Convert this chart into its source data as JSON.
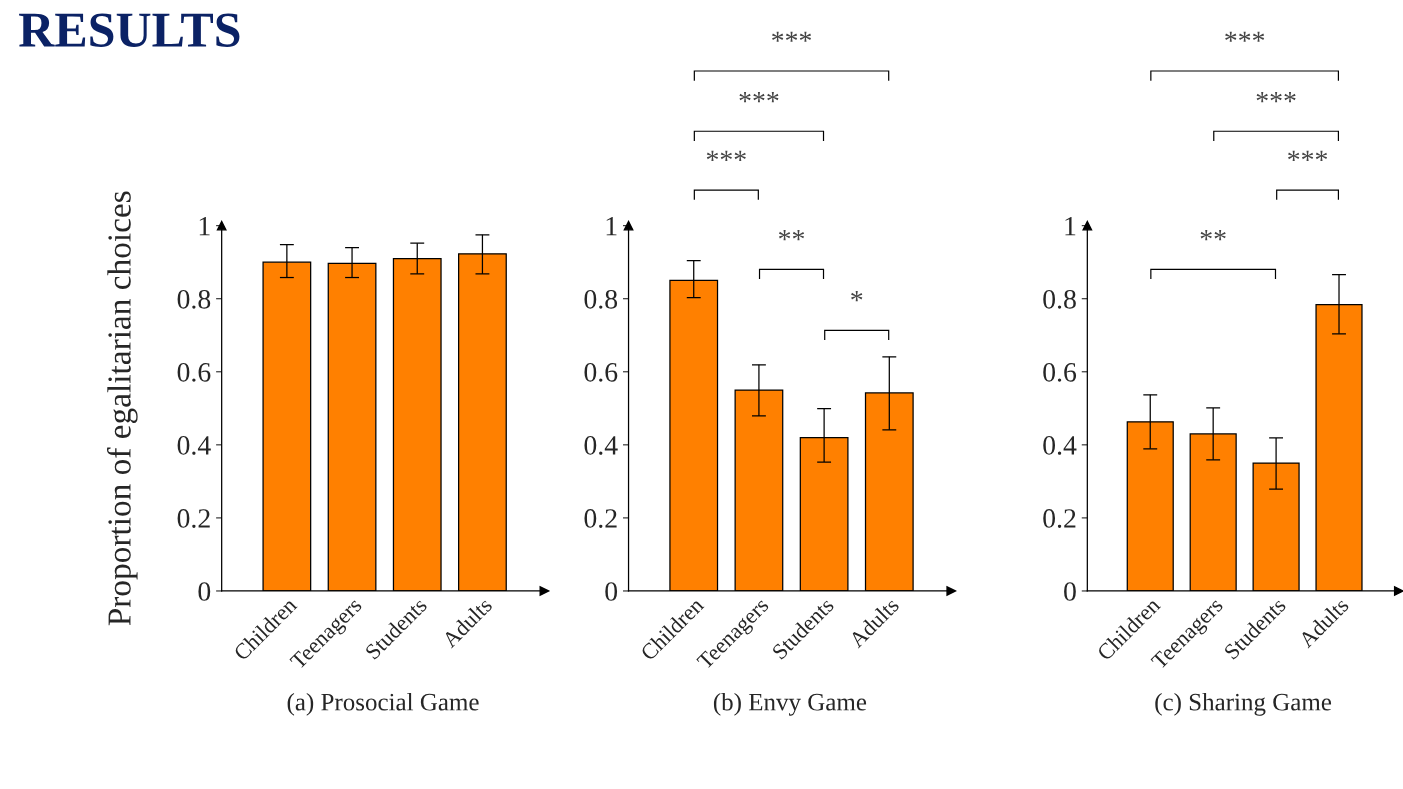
{
  "chart_data": [
    {
      "type": "bar",
      "title": "RESULTS",
      "ylabel": "Proportion of egalitarian choices",
      "xlabel": "(a) Prosocial Game",
      "categories": [
        "Children",
        "Teenagers",
        "Students",
        "Adults"
      ],
      "series": [
        {
          "color": "#ff8000",
          "values": [
            0.9,
            0.897,
            0.91,
            0.923
          ],
          "errors": [
            [
              0.858,
              0.948
            ],
            [
              0.858,
              0.94
            ],
            [
              0.868,
              0.952
            ],
            [
              0.868,
              0.975
            ]
          ]
        }
      ],
      "ylim": [
        0,
        1
      ],
      "yticks": [
        0,
        0.2,
        0.4,
        0.6,
        0.8,
        1
      ],
      "grid": false,
      "legend": false
    },
    {
      "type": "bar",
      "xlabel": "(b) Envy Game",
      "categories": [
        "Children",
        "Teenagers",
        "Students",
        "Adults"
      ],
      "series": [
        {
          "color": "#ff8000",
          "values": [
            0.85,
            0.55,
            0.42,
            0.542
          ],
          "errors": [
            [
              0.803,
              0.904
            ],
            [
              0.479,
              0.619
            ],
            [
              0.353,
              0.499
            ],
            [
              0.441,
              0.641
            ]
          ]
        }
      ],
      "ylim": [
        0,
        1
      ],
      "yticks": [
        0,
        0.2,
        0.4,
        0.6,
        0.8,
        1
      ],
      "grid": false,
      "legend": false,
      "annotations": [
        "***",
        "***",
        "***",
        "**",
        "*"
      ]
    },
    {
      "type": "bar",
      "xlabel": "(c) Sharing Game",
      "categories": [
        "Children",
        "Teenagers",
        "Students",
        "Adults"
      ],
      "series": [
        {
          "color": "#ff8000",
          "values": [
            0.463,
            0.43,
            0.35,
            0.784
          ],
          "errors": [
            [
              0.389,
              0.537
            ],
            [
              0.359,
              0.501
            ],
            [
              0.279,
              0.419
            ],
            [
              0.704,
              0.866
            ]
          ]
        }
      ],
      "ylim": [
        0,
        1
      ],
      "yticks": [
        0,
        0.2,
        0.4,
        0.6,
        0.8,
        1
      ],
      "grid": false,
      "legend": false,
      "annotations": [
        "***",
        "***",
        "***",
        "**"
      ]
    }
  ]
}
